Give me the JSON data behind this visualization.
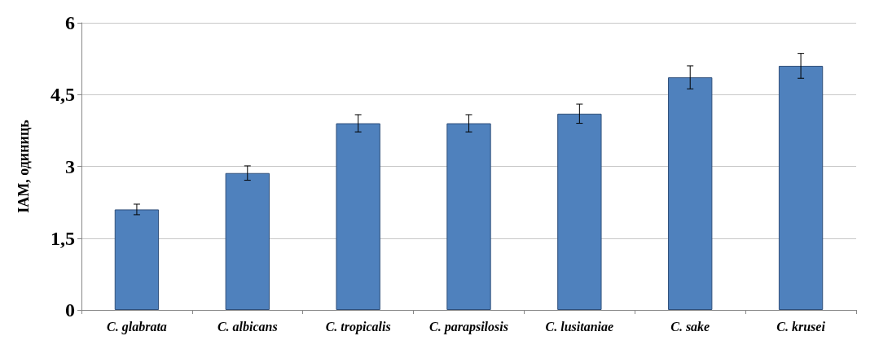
{
  "chart_data": {
    "type": "bar",
    "ylabel": "IAM, одиниць",
    "categories": [
      "C. glabrata",
      "C. albicans",
      "C. tropicalis",
      "C. parapsilosis",
      "C. lusitaniae",
      "C. sake",
      "C. krusei"
    ],
    "values": [
      2.1,
      2.86,
      3.9,
      3.9,
      4.1,
      4.86,
      5.1
    ],
    "errors": [
      0.11,
      0.15,
      0.18,
      0.18,
      0.2,
      0.24,
      0.26
    ],
    "color": "#4f81bd",
    "ylim": [
      0,
      6
    ],
    "yticks": [
      0,
      {
        "value": 1.5,
        "label": "1,5"
      },
      3,
      {
        "value": 4.5,
        "label": "4,5"
      },
      6
    ],
    "grid": "y"
  }
}
